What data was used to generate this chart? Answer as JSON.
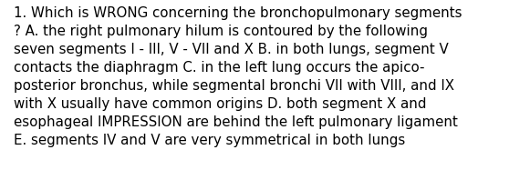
{
  "lines": [
    "1. Which is WRONG concerning the bronchopulmonary segments",
    "? A. the right pulmonary hilum is contoured by the following",
    "seven segments I - III, V - VII and X B. in both lungs, segment V",
    "contacts the diaphragm C. in the left lung occurs the apico-",
    "posterior bronchus, while segmental bronchi VII with VIII, and IX",
    "with X usually have common origins D. both segment X and",
    "esophageal IMPRESSION are behind the left pulmonary ligament",
    "E. segments IV and V are very symmetrical in both lungs"
  ],
  "background_color": "#ffffff",
  "text_color": "#000000",
  "font_size": 10.8,
  "fig_width": 5.58,
  "fig_height": 2.09,
  "dpi": 100
}
